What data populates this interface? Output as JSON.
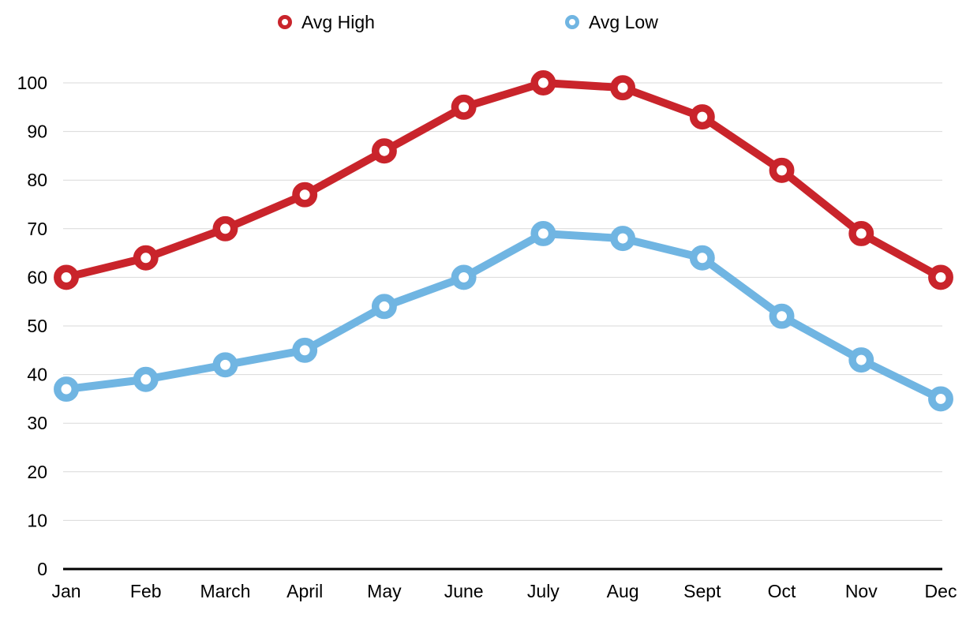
{
  "legend": {
    "items": [
      {
        "label": "Avg High",
        "color": "#C9242B"
      },
      {
        "label": "Avg Low",
        "color": "#70B5E2"
      }
    ]
  },
  "chart_data": {
    "type": "line",
    "title": "",
    "xlabel": "",
    "ylabel": "",
    "categories": [
      "Jan",
      "Feb",
      "March",
      "April",
      "May",
      "June",
      "July",
      "Aug",
      "Sept",
      "Oct",
      "Nov",
      "Dec"
    ],
    "series": [
      {
        "name": "Avg High",
        "color": "#C9242B",
        "values": [
          60,
          64,
          70,
          77,
          86,
          95,
          100,
          99,
          93,
          82,
          69,
          60
        ]
      },
      {
        "name": "Avg Low",
        "color": "#70B5E2",
        "values": [
          37,
          39,
          42,
          45,
          54,
          60,
          69,
          68,
          64,
          52,
          43,
          35
        ]
      }
    ],
    "ylim": [
      0,
      100
    ],
    "y_ticks": [
      0,
      10,
      20,
      30,
      40,
      50,
      60,
      70,
      80,
      90,
      100
    ],
    "grid": true,
    "legend_position": "top",
    "marker": "hollow-circle",
    "colors": {
      "gridline": "#d9d9d9",
      "axis_line": "#000000",
      "tick_text": "#000000"
    }
  }
}
